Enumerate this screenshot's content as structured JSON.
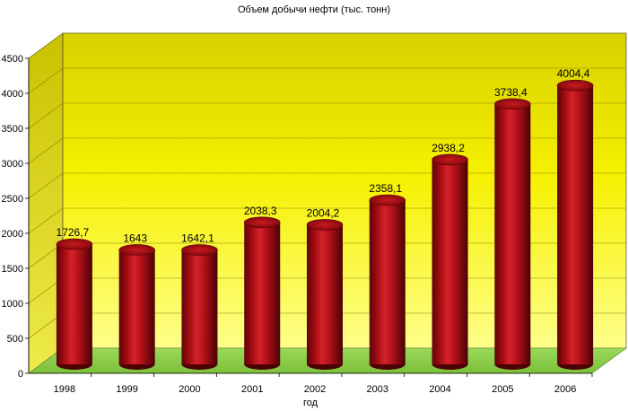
{
  "chart_data": {
    "type": "bar",
    "title": "Объем добычи нефти (тыс. тонн)",
    "xlabel": "год",
    "ylabel": "",
    "ylim": [
      0,
      4500
    ],
    "yticks": [
      0,
      500,
      1000,
      1500,
      2000,
      2500,
      3000,
      3500,
      4000,
      4500
    ],
    "categories": [
      "1998",
      "1999",
      "2000",
      "2001",
      "2002",
      "2003",
      "2004",
      "2005",
      "2006"
    ],
    "values": [
      1726.7,
      1643,
      1642.1,
      2038.3,
      2004.2,
      2358.1,
      2938.2,
      3738.4,
      4004.4
    ],
    "data_labels": [
      "1726,7",
      "1643",
      "1642,1",
      "2038,3",
      "2004,2",
      "2358,1",
      "2938,2",
      "3738,4",
      "4004,4"
    ],
    "grid": true,
    "style": "3d-cylinder",
    "colors": {
      "wall": "#f2ee00",
      "floor": "#8fd14f",
      "bar": "#b30d12"
    }
  }
}
